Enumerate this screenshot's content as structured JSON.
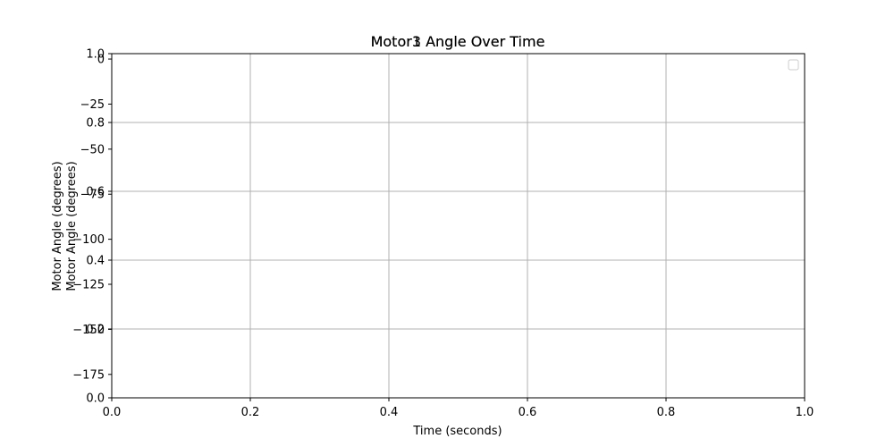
{
  "chart_data": [
    {
      "type": "line",
      "title": "Motor1 Angle Over Time",
      "xlabel": "Time (seconds)",
      "ylabel": "Motor Angle (degrees)",
      "xlim": [
        0.0,
        1.0
      ],
      "ylim": [
        0.0,
        1.0
      ],
      "x_ticks": [
        "0.0",
        "0.2",
        "0.4",
        "0.6",
        "0.8",
        "1.0"
      ],
      "y_ticks": [
        "0.0",
        "0.2",
        "0.4",
        "0.6",
        "0.8",
        "1.0"
      ],
      "grid": true,
      "legend": "top-right",
      "series": []
    },
    {
      "type": "line",
      "title": "Motor3 Angle Over Time",
      "xlabel": "Time (seconds)",
      "ylabel": "Motor Angle (degrees)",
      "ylim": [
        -188,
        3
      ],
      "y_ticks": [
        "0",
        "−25",
        "−50",
        "−75",
        "−100",
        "−125",
        "−150",
        "−175"
      ],
      "y_tick_values": [
        0,
        -25,
        -50,
        -75,
        -100,
        -125,
        -150,
        -175
      ],
      "grid": false,
      "series": []
    }
  ],
  "colors": {
    "grid": "#b0b0b0",
    "axis": "#000000",
    "legend_border": "#cccccc"
  }
}
